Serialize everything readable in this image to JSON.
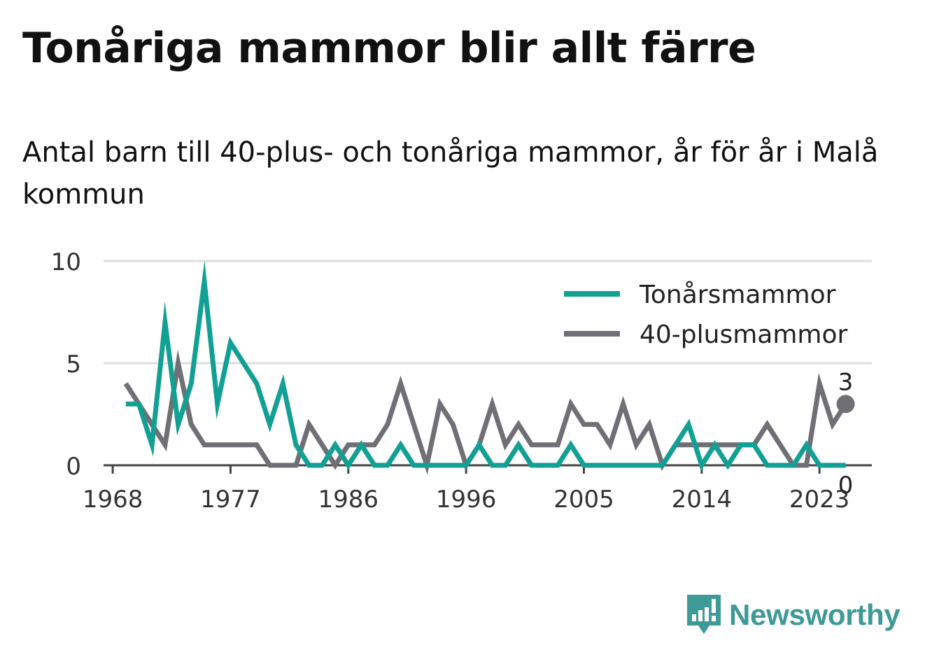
{
  "title": "Tonåriga mammor blir allt färre",
  "subtitle": "Antal barn till 40-plus- och tonåriga mammor, år för år i Malå kommun",
  "brand": {
    "name": "Newsworthy",
    "color": "#3d9a96",
    "icon": "newsworthy-logo-icon"
  },
  "chart_data": {
    "type": "line",
    "x_tick_labels": [
      "1968",
      "1977",
      "1986",
      "1996",
      "2005",
      "2014",
      "2023"
    ],
    "x_tick_years": [
      1968,
      1977,
      1986,
      1995,
      2004,
      2013,
      2022
    ],
    "y_ticks": [
      0,
      5,
      10
    ],
    "ylim": [
      0,
      10
    ],
    "xlim": [
      1967.3,
      2026
    ],
    "grid": true,
    "legend_position": "top-right",
    "x": [
      1969,
      1970,
      1971,
      1972,
      1973,
      1974,
      1975,
      1976,
      1977,
      1978,
      1979,
      1980,
      1981,
      1982,
      1983,
      1984,
      1985,
      1986,
      1987,
      1988,
      1989,
      1990,
      1991,
      1992,
      1993,
      1994,
      1995,
      1996,
      1997,
      1998,
      1999,
      2000,
      2001,
      2002,
      2003,
      2004,
      2005,
      2006,
      2007,
      2008,
      2009,
      2010,
      2011,
      2012,
      2013,
      2014,
      2015,
      2016,
      2017,
      2018,
      2019,
      2020,
      2021,
      2022,
      2023,
      2024
    ],
    "series": [
      {
        "name": "Tonårsmammor",
        "color": "#12a094",
        "values": [
          3,
          3,
          1,
          7,
          2,
          4,
          9,
          3,
          6,
          5,
          4,
          2,
          4,
          1,
          0,
          0,
          1,
          0,
          1,
          0,
          0,
          1,
          0,
          0,
          0,
          0,
          0,
          1,
          0,
          0,
          1,
          0,
          0,
          0,
          1,
          0,
          0,
          0,
          0,
          0,
          0,
          0,
          1,
          2,
          0,
          1,
          0,
          1,
          1,
          0,
          0,
          0,
          1,
          0,
          0,
          0
        ],
        "end_label": "0"
      },
      {
        "name": "40-plusmammor",
        "color": "#6f6f75",
        "values": [
          4,
          3,
          2,
          1,
          5,
          2,
          1,
          1,
          1,
          1,
          1,
          0,
          0,
          0,
          2,
          1,
          0,
          1,
          1,
          1,
          2,
          4,
          2,
          0,
          3,
          2,
          0,
          1,
          3,
          1,
          2,
          1,
          1,
          1,
          3,
          2,
          2,
          1,
          3,
          1,
          2,
          0,
          1,
          1,
          1,
          1,
          1,
          1,
          1,
          2,
          1,
          0,
          0,
          4,
          2,
          3
        ],
        "end_label": "3"
      }
    ]
  }
}
